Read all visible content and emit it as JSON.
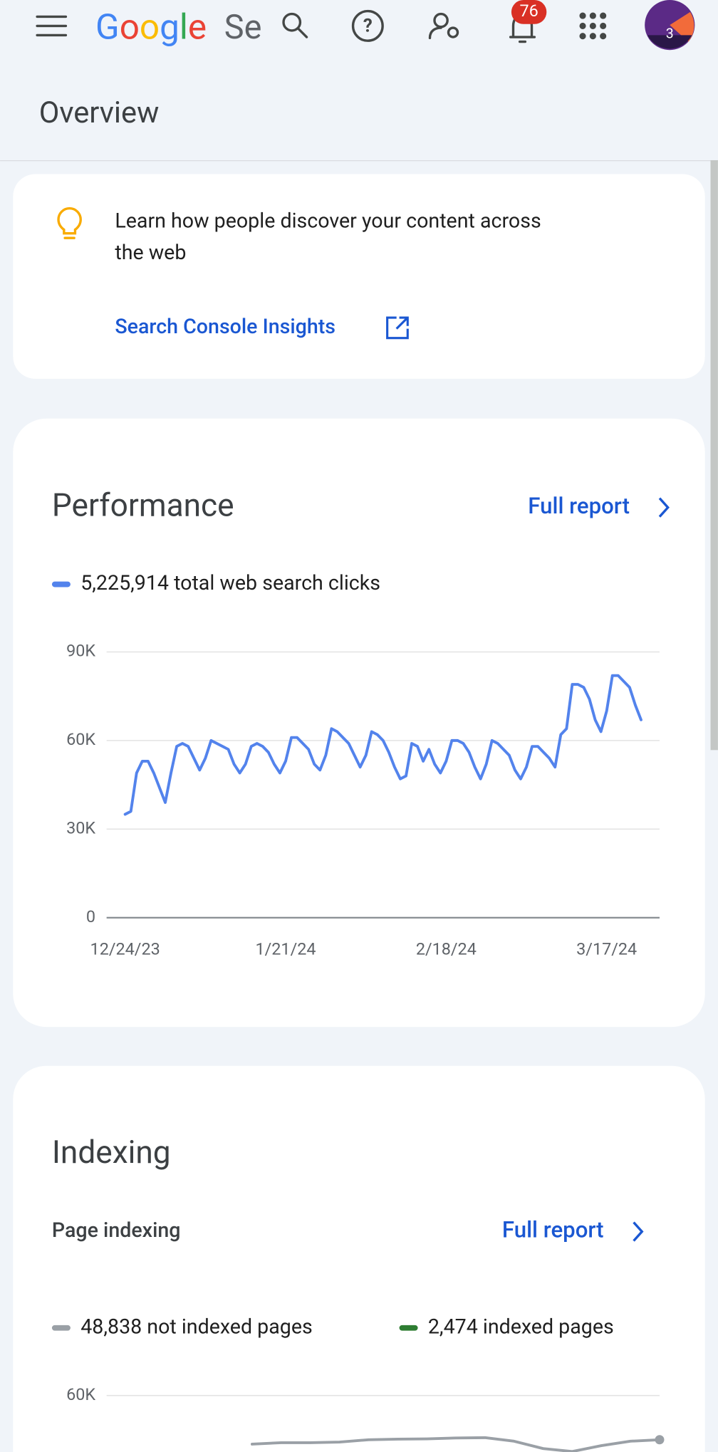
{
  "header": {
    "logo": "Google",
    "product": "Se",
    "notifications": "76",
    "avatar_badge": "3"
  },
  "page_title": "Overview",
  "insights_card": {
    "text_line1": "Learn how people discover your content across",
    "text_line2": "the web",
    "link": "Search Console Insights"
  },
  "performance_card": {
    "title": "Performance",
    "full_report": "Full report"
  },
  "indexing_card": {
    "title": "Indexing",
    "subtitle": "Page indexing",
    "full_report": "Full report"
  },
  "chart_data": [
    {
      "type": "line",
      "categories": [
        "12/24/23",
        null,
        null,
        null,
        null,
        null,
        null,
        null,
        null,
        null,
        null,
        null,
        null,
        null,
        null,
        null,
        null,
        null,
        null,
        null,
        null,
        null,
        null,
        null,
        null,
        null,
        null,
        null,
        "1/21/24",
        null,
        null,
        null,
        null,
        null,
        null,
        null,
        null,
        null,
        null,
        null,
        null,
        null,
        null,
        null,
        null,
        null,
        null,
        null,
        null,
        null,
        null,
        null,
        null,
        null,
        null,
        null,
        "2/18/24",
        null,
        null,
        null,
        null,
        null,
        null,
        null,
        null,
        null,
        null,
        null,
        null,
        null,
        null,
        null,
        null,
        null,
        null,
        null,
        null,
        null,
        null,
        null,
        null,
        null,
        null,
        null,
        "3/17/24",
        null,
        null,
        null,
        null,
        null,
        null
      ],
      "series": [
        {
          "name": "5,225,914 total web search clicks",
          "color": "#5383ec",
          "values": [
            35000,
            36000,
            49000,
            53000,
            53000,
            49000,
            44000,
            39000,
            49000,
            58000,
            59000,
            58000,
            54000,
            50000,
            54000,
            60000,
            59000,
            58000,
            57000,
            52000,
            49000,
            52000,
            58000,
            59000,
            58000,
            56000,
            52000,
            49000,
            53000,
            61000,
            61000,
            59000,
            57000,
            52000,
            50000,
            55000,
            64000,
            63000,
            61000,
            59000,
            55000,
            51000,
            55000,
            63000,
            62000,
            60000,
            56000,
            51000,
            47000,
            48000,
            59000,
            58000,
            53000,
            57000,
            52000,
            49000,
            53000,
            60000,
            60000,
            59000,
            56000,
            51000,
            47000,
            52000,
            60000,
            59000,
            57000,
            55000,
            50000,
            47000,
            51000,
            58000,
            58000,
            56000,
            54000,
            51000,
            62000,
            64000,
            79000,
            79000,
            78000,
            74000,
            67000,
            63000,
            70000,
            82000,
            82000,
            80000,
            78000,
            72000,
            67000
          ]
        }
      ],
      "ylim": [
        0,
        90000
      ],
      "yticks": [
        {
          "value": 0,
          "label": "0"
        },
        {
          "value": 30000,
          "label": "30K"
        },
        {
          "value": 60000,
          "label": "60K"
        },
        {
          "value": 90000,
          "label": "90K"
        }
      ],
      "grid": true
    },
    {
      "type": "line",
      "categories": [
        null,
        null,
        null,
        null,
        null,
        null,
        null,
        null,
        null,
        null,
        null,
        null,
        null,
        null,
        null,
        null,
        null,
        null,
        null,
        null
      ],
      "series": [
        {
          "name": "48,838 not indexed pages",
          "color": "#9aa0a6",
          "values": [
            null,
            null,
            null,
            null,
            null,
            43500,
            44000,
            44000,
            44200,
            45000,
            45200,
            45300,
            45600,
            45700,
            44500,
            42000,
            41000,
            43000,
            44500,
            45000
          ]
        },
        {
          "name": "2,474 indexed pages",
          "color": "#2e7d32"
        }
      ],
      "ylim": [
        0,
        60000
      ],
      "yticks": [
        {
          "value": 60000,
          "label": "60K"
        }
      ],
      "grid": true
    }
  ]
}
